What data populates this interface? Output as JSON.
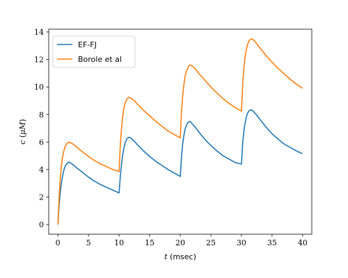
{
  "chart_data": {
    "type": "line",
    "xlabel_var": "t",
    "xlabel_unit": " (msec)",
    "ylabel_var": "c",
    "ylabel_paren_open": " (",
    "ylabel_mu": "μM",
    "ylabel_paren_close": ")",
    "xlim": [
      -1.5,
      41.5
    ],
    "ylim": [
      -0.7,
      14.2
    ],
    "x_ticks": [
      0,
      5,
      10,
      15,
      20,
      25,
      30,
      35,
      40
    ],
    "y_ticks": [
      0,
      2,
      4,
      6,
      8,
      10,
      12,
      14
    ],
    "grid": false,
    "legend_placement": "top-left",
    "series": [
      {
        "name": "EF-FJ",
        "color": "#1f77b4",
        "x": [
          0,
          0.2,
          0.4,
          0.6,
          0.8,
          1.0,
          1.2,
          1.5,
          1.8,
          2.5,
          3,
          4,
          5,
          6,
          7,
          8,
          9,
          10,
          10.2,
          10.4,
          10.6,
          10.8,
          11.0,
          11.3,
          11.6,
          11.9,
          12.5,
          13,
          14,
          15,
          16,
          17,
          18,
          19,
          20,
          20.2,
          20.4,
          20.6,
          20.8,
          21.0,
          21.3,
          21.6,
          21.9,
          22.5,
          23,
          24,
          25,
          26,
          27,
          28,
          29,
          30,
          30.2,
          30.4,
          30.6,
          30.8,
          31.0,
          31.3,
          31.6,
          31.9,
          32.5,
          33,
          34,
          35,
          36,
          37,
          38,
          39,
          40
        ],
        "values": [
          0.0,
          1.4,
          2.4,
          3.1,
          3.6,
          4.0,
          4.25,
          4.45,
          4.55,
          4.35,
          4.15,
          3.8,
          3.45,
          3.15,
          2.9,
          2.7,
          2.5,
          2.3,
          3.5,
          4.4,
          5.1,
          5.6,
          5.95,
          6.25,
          6.35,
          6.3,
          6.05,
          5.8,
          5.35,
          4.95,
          4.6,
          4.3,
          4.0,
          3.75,
          3.5,
          4.9,
          5.9,
          6.5,
          6.95,
          7.2,
          7.45,
          7.5,
          7.35,
          7.05,
          6.75,
          6.2,
          5.75,
          5.35,
          5.0,
          4.75,
          4.5,
          4.4,
          5.9,
          6.8,
          7.4,
          7.8,
          8.1,
          8.3,
          8.35,
          8.25,
          7.95,
          7.65,
          7.1,
          6.6,
          6.2,
          5.85,
          5.6,
          5.35,
          5.15
        ]
      },
      {
        "name": "Borole et al",
        "color": "#ff7f0e",
        "x": [
          0,
          0.2,
          0.4,
          0.6,
          0.8,
          1.0,
          1.2,
          1.5,
          1.8,
          2.5,
          3,
          4,
          5,
          6,
          7,
          8,
          9,
          10,
          10.2,
          10.4,
          10.6,
          10.8,
          11.0,
          11.3,
          11.6,
          11.9,
          12.5,
          13,
          14,
          15,
          16,
          17,
          18,
          19,
          20,
          20.2,
          20.4,
          20.6,
          20.8,
          21.0,
          21.3,
          21.6,
          21.9,
          22.5,
          23,
          24,
          25,
          26,
          27,
          28,
          29,
          30,
          30.2,
          30.4,
          30.6,
          30.8,
          31.0,
          31.3,
          31.6,
          31.9,
          32.5,
          33,
          34,
          35,
          36,
          37,
          38,
          39,
          40
        ],
        "values": [
          0.0,
          2.0,
          3.4,
          4.4,
          5.0,
          5.4,
          5.7,
          5.9,
          6.0,
          5.85,
          5.65,
          5.3,
          4.95,
          4.65,
          4.4,
          4.2,
          4.0,
          3.85,
          5.8,
          7.0,
          7.9,
          8.5,
          8.85,
          9.15,
          9.25,
          9.2,
          9.0,
          8.75,
          8.3,
          7.9,
          7.5,
          7.15,
          6.8,
          6.55,
          6.3,
          8.2,
          9.4,
          10.2,
          10.8,
          11.15,
          11.45,
          11.6,
          11.55,
          11.3,
          11.0,
          10.5,
          10.0,
          9.55,
          9.15,
          8.8,
          8.5,
          8.25,
          10.2,
          11.4,
          12.2,
          12.7,
          13.1,
          13.4,
          13.5,
          13.45,
          13.15,
          12.85,
          12.3,
          11.8,
          11.35,
          10.95,
          10.55,
          10.2,
          9.9
        ]
      }
    ]
  }
}
